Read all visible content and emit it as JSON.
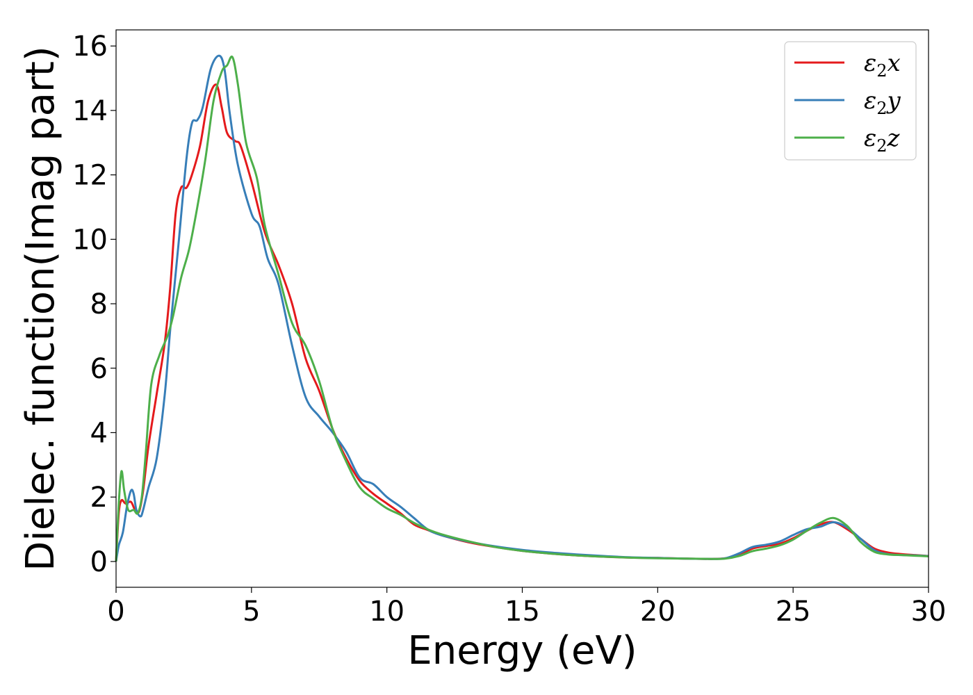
{
  "chart_data": {
    "type": "line",
    "title": "",
    "xlabel": "Energy (eV)",
    "ylabel": "Dielec. function(Imag part)",
    "xlim": [
      0,
      30
    ],
    "ylim": [
      -0.8,
      16.5
    ],
    "xticks": [
      0,
      5,
      10,
      15,
      20,
      25,
      30
    ],
    "yticks": [
      0,
      2,
      4,
      6,
      8,
      10,
      12,
      14,
      16
    ],
    "grid": false,
    "legend_position": "top-right",
    "series": [
      {
        "name": "ε₂x",
        "legend": {
          "base": "ε",
          "sub": "2",
          "axis": "x"
        },
        "color": "#e41a1c",
        "points": [
          [
            0,
            0
          ],
          [
            0.1,
            1.5
          ],
          [
            0.2,
            1.9
          ],
          [
            0.35,
            1.8
          ],
          [
            0.55,
            1.85
          ],
          [
            0.7,
            1.6
          ],
          [
            0.85,
            1.55
          ],
          [
            1.0,
            2.2
          ],
          [
            1.2,
            3.6
          ],
          [
            1.5,
            5.2
          ],
          [
            1.8,
            6.8
          ],
          [
            2.0,
            8.5
          ],
          [
            2.2,
            10.8
          ],
          [
            2.4,
            11.6
          ],
          [
            2.6,
            11.6
          ],
          [
            2.8,
            12.0
          ],
          [
            3.1,
            12.9
          ],
          [
            3.4,
            14.3
          ],
          [
            3.7,
            14.8
          ],
          [
            3.9,
            14.1
          ],
          [
            4.1,
            13.3
          ],
          [
            4.4,
            13.05
          ],
          [
            4.6,
            12.9
          ],
          [
            5.0,
            11.8
          ],
          [
            5.5,
            10.2
          ],
          [
            6.0,
            9.2
          ],
          [
            6.5,
            8.0
          ],
          [
            7.0,
            6.3
          ],
          [
            7.5,
            5.3
          ],
          [
            8.0,
            4.1
          ],
          [
            8.5,
            3.2
          ],
          [
            9.0,
            2.5
          ],
          [
            9.5,
            2.1
          ],
          [
            10.0,
            1.8
          ],
          [
            10.5,
            1.5
          ],
          [
            11.0,
            1.15
          ],
          [
            11.5,
            0.98
          ],
          [
            12,
            0.82
          ],
          [
            13,
            0.6
          ],
          [
            14,
            0.45
          ],
          [
            15,
            0.33
          ],
          [
            16,
            0.25
          ],
          [
            17,
            0.19
          ],
          [
            18,
            0.15
          ],
          [
            19,
            0.12
          ],
          [
            20,
            0.11
          ],
          [
            21,
            0.09
          ],
          [
            22,
            0.08
          ],
          [
            22.5,
            0.1
          ],
          [
            23,
            0.2
          ],
          [
            23.5,
            0.4
          ],
          [
            24,
            0.48
          ],
          [
            24.5,
            0.55
          ],
          [
            25,
            0.72
          ],
          [
            25.5,
            0.95
          ],
          [
            26,
            1.15
          ],
          [
            26.5,
            1.22
          ],
          [
            27,
            1.0
          ],
          [
            27.5,
            0.7
          ],
          [
            28,
            0.4
          ],
          [
            28.5,
            0.28
          ],
          [
            29,
            0.23
          ],
          [
            29.5,
            0.2
          ],
          [
            30,
            0.17
          ]
        ]
      },
      {
        "name": "ε₂y",
        "legend": {
          "base": "ε",
          "sub": "2",
          "axis": "y"
        },
        "color": "#377eb8",
        "points": [
          [
            0,
            0
          ],
          [
            0.1,
            0.5
          ],
          [
            0.25,
            0.9
          ],
          [
            0.4,
            1.7
          ],
          [
            0.55,
            2.2
          ],
          [
            0.65,
            2.1
          ],
          [
            0.75,
            1.6
          ],
          [
            0.9,
            1.4
          ],
          [
            1.0,
            1.6
          ],
          [
            1.2,
            2.3
          ],
          [
            1.5,
            3.2
          ],
          [
            1.8,
            5.2
          ],
          [
            2.0,
            7.2
          ],
          [
            2.3,
            9.8
          ],
          [
            2.6,
            12.5
          ],
          [
            2.8,
            13.6
          ],
          [
            3.0,
            13.7
          ],
          [
            3.2,
            14.1
          ],
          [
            3.5,
            15.3
          ],
          [
            3.8,
            15.7
          ],
          [
            4.0,
            15.3
          ],
          [
            4.2,
            13.9
          ],
          [
            4.5,
            12.3
          ],
          [
            5.0,
            10.8
          ],
          [
            5.3,
            10.4
          ],
          [
            5.6,
            9.4
          ],
          [
            6.0,
            8.6
          ],
          [
            6.5,
            6.7
          ],
          [
            7.0,
            5.1
          ],
          [
            7.5,
            4.5
          ],
          [
            8.0,
            4.0
          ],
          [
            8.5,
            3.4
          ],
          [
            9.0,
            2.6
          ],
          [
            9.5,
            2.4
          ],
          [
            10.0,
            2.0
          ],
          [
            10.5,
            1.7
          ],
          [
            11.0,
            1.35
          ],
          [
            11.5,
            1.0
          ],
          [
            12,
            0.82
          ],
          [
            13,
            0.62
          ],
          [
            14,
            0.47
          ],
          [
            15,
            0.36
          ],
          [
            16,
            0.28
          ],
          [
            17,
            0.22
          ],
          [
            18,
            0.17
          ],
          [
            19,
            0.13
          ],
          [
            20,
            0.11
          ],
          [
            21,
            0.09
          ],
          [
            22,
            0.08
          ],
          [
            22.5,
            0.1
          ],
          [
            23,
            0.25
          ],
          [
            23.5,
            0.45
          ],
          [
            24,
            0.52
          ],
          [
            24.5,
            0.62
          ],
          [
            25,
            0.82
          ],
          [
            25.5,
            1.0
          ],
          [
            26,
            1.08
          ],
          [
            26.5,
            1.22
          ],
          [
            27,
            1.05
          ],
          [
            27.5,
            0.7
          ],
          [
            28,
            0.35
          ],
          [
            28.5,
            0.23
          ],
          [
            29,
            0.2
          ],
          [
            29.5,
            0.19
          ],
          [
            30,
            0.17
          ]
        ]
      },
      {
        "name": "ε₂z",
        "legend": {
          "base": "ε",
          "sub": "2",
          "axis": "z"
        },
        "color": "#4daf4a",
        "points": [
          [
            0,
            0
          ],
          [
            0.1,
            1.8
          ],
          [
            0.2,
            2.8
          ],
          [
            0.3,
            2.2
          ],
          [
            0.45,
            1.6
          ],
          [
            0.65,
            1.6
          ],
          [
            0.8,
            1.5
          ],
          [
            0.95,
            2.0
          ],
          [
            1.1,
            3.4
          ],
          [
            1.3,
            5.5
          ],
          [
            1.6,
            6.4
          ],
          [
            1.9,
            7.0
          ],
          [
            2.1,
            7.6
          ],
          [
            2.4,
            8.8
          ],
          [
            2.7,
            9.7
          ],
          [
            3.0,
            11.0
          ],
          [
            3.3,
            12.5
          ],
          [
            3.6,
            14.3
          ],
          [
            3.9,
            15.2
          ],
          [
            4.1,
            15.4
          ],
          [
            4.3,
            15.65
          ],
          [
            4.5,
            14.8
          ],
          [
            4.8,
            13.0
          ],
          [
            5.2,
            11.9
          ],
          [
            5.5,
            10.4
          ],
          [
            6.0,
            8.9
          ],
          [
            6.5,
            7.4
          ],
          [
            7.0,
            6.7
          ],
          [
            7.5,
            5.6
          ],
          [
            8.0,
            4.1
          ],
          [
            8.5,
            3.1
          ],
          [
            9.0,
            2.3
          ],
          [
            9.5,
            1.95
          ],
          [
            10.0,
            1.65
          ],
          [
            10.5,
            1.45
          ],
          [
            11.0,
            1.2
          ],
          [
            11.5,
            1.0
          ],
          [
            12,
            0.85
          ],
          [
            13,
            0.63
          ],
          [
            14,
            0.45
          ],
          [
            15,
            0.33
          ],
          [
            16,
            0.25
          ],
          [
            17,
            0.19
          ],
          [
            18,
            0.15
          ],
          [
            19,
            0.12
          ],
          [
            20,
            0.1
          ],
          [
            21,
            0.09
          ],
          [
            22,
            0.08
          ],
          [
            22.5,
            0.09
          ],
          [
            23,
            0.17
          ],
          [
            23.5,
            0.32
          ],
          [
            24,
            0.4
          ],
          [
            24.5,
            0.5
          ],
          [
            25,
            0.68
          ],
          [
            25.5,
            0.95
          ],
          [
            26,
            1.2
          ],
          [
            26.5,
            1.35
          ],
          [
            27,
            1.1
          ],
          [
            27.5,
            0.6
          ],
          [
            28,
            0.3
          ],
          [
            28.5,
            0.22
          ],
          [
            29,
            0.2
          ],
          [
            29.5,
            0.18
          ],
          [
            30,
            0.16
          ]
        ]
      }
    ]
  }
}
